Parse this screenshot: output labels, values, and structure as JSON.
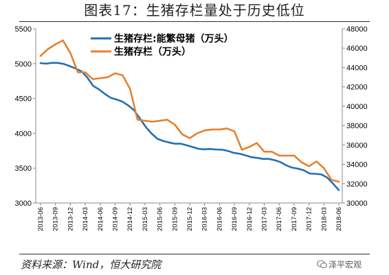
{
  "title": "图表17：生猪存栏量处于历史低位",
  "source": "资料来源：Wind，恒大研究院",
  "watermark": "泽平宏观",
  "chart_data": {
    "type": "line",
    "title": "图表17：生猪存栏量处于历史低位",
    "x_tick_labels": [
      "2013-06",
      "2013-09",
      "2013-12",
      "2014-03",
      "2014-06",
      "2014-09",
      "2014-12",
      "2015-03",
      "2015-06",
      "2015-09",
      "2015-12",
      "2016-03",
      "2016-06",
      "2016-09",
      "2016-12",
      "2017-03",
      "2017-06",
      "2017-09",
      "2017-12",
      "2018-03",
      "2018-06"
    ],
    "y_left": {
      "min": 3000,
      "max": 5500,
      "ticks": [
        3000,
        3500,
        4000,
        4500,
        5000,
        5500
      ]
    },
    "y_right": {
      "min": 30000,
      "max": 48000,
      "ticks": [
        30000,
        32000,
        34000,
        36000,
        38000,
        40000,
        42000,
        44000,
        46000,
        48000
      ]
    },
    "legend_position": "top",
    "grid": false,
    "series": [
      {
        "name": "生猪存栏:能繁母猪（万头）",
        "axis": "left",
        "color": "#1f6fb5",
        "values": [
          5008,
          5000,
          5012,
          5010,
          4995,
          4965,
          4930,
          4890,
          4800,
          4680,
          4630,
          4565,
          4510,
          4485,
          4455,
          4400,
          4330,
          4210,
          4090,
          3995,
          3920,
          3890,
          3868,
          3850,
          3850,
          3828,
          3803,
          3778,
          3770,
          3776,
          3768,
          3766,
          3748,
          3720,
          3708,
          3685,
          3658,
          3648,
          3633,
          3633,
          3615,
          3588,
          3540,
          3508,
          3493,
          3470,
          3423,
          3418,
          3410,
          3365,
          3280,
          3185
        ]
      },
      {
        "name": "生猪存栏（万头）",
        "axis": "right",
        "color": "#e6802c",
        "values": [
          45200,
          45900,
          46400,
          46800,
          45500,
          43500,
          43500,
          42800,
          42900,
          43000,
          43400,
          43200,
          41800,
          38600,
          38500,
          38400,
          38500,
          38600,
          38100,
          37100,
          36700,
          37200,
          37500,
          37600,
          37600,
          37700,
          37400,
          35500,
          35800,
          36200,
          35300,
          35300,
          34900,
          34900,
          34900,
          34200,
          33800,
          34300,
          33600,
          32400,
          32200
        ]
      }
    ]
  }
}
